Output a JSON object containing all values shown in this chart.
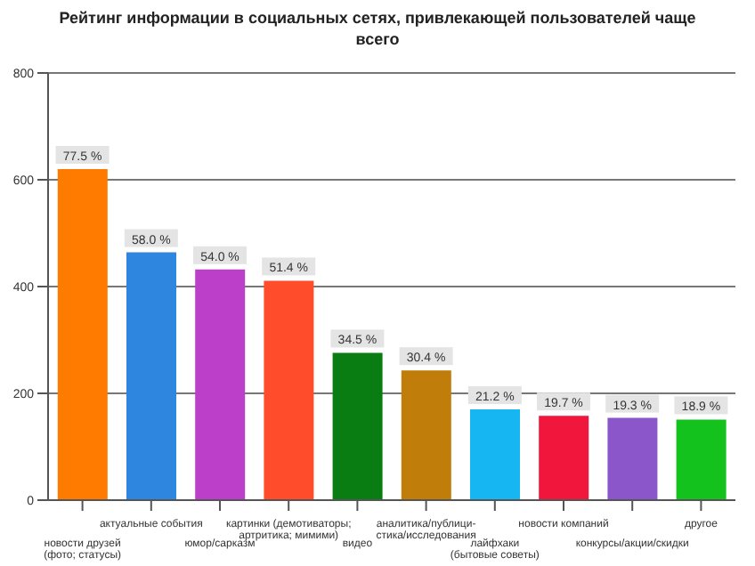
{
  "chart_data": {
    "type": "bar",
    "title": "Рейтинг информации в социальных сетях, привлекающей пользователей чаще всего",
    "categories": [
      "новости друзей\n(фото; статусы)",
      "актуальные события",
      "юмор/сарказм",
      "картинки (демотиваторы;\nартритика; мимими)",
      "видео",
      "аналитика/публици-\nстика/исследования",
      "лайфхаки\n(бытовые советы)",
      "новости компаний",
      "конкурсы/акции/скидки",
      "другое"
    ],
    "values": [
      620,
      464,
      432,
      411,
      276,
      243,
      170,
      158,
      154,
      151
    ],
    "annotations": [
      {
        "text": "77.5 %",
        "x": "новости друзей\n(фото; статусы)",
        "y": 620
      },
      {
        "text": "58.0 %",
        "x": "актуальные события",
        "y": 464
      },
      {
        "text": "54.0 %",
        "x": "юмор/сарказм",
        "y": 432
      },
      {
        "text": "51.4 %",
        "x": "картинки (демотиваторы;\nартритика; мимими)",
        "y": 411
      },
      {
        "text": "34.5 %",
        "x": "видео",
        "y": 276
      },
      {
        "text": "30.4 %",
        "x": "аналитика/публици-\nстика/исследования",
        "y": 243
      },
      {
        "text": "21.2 %",
        "x": "лайфхаки\n(бытовые советы)",
        "y": 170
      },
      {
        "text": "19.7 %",
        "x": "новости компаний",
        "y": 158
      },
      {
        "text": "19.3 %",
        "x": "конкурсы/акции/скидки",
        "y": 154
      },
      {
        "text": "18.9 %",
        "x": "другое",
        "y": 151
      }
    ],
    "colors": [
      "#ff7b00",
      "#2f86de",
      "#bb3fc9",
      "#ff4d2b",
      "#0a7d12",
      "#c07d0a",
      "#15b6f2",
      "#f0163c",
      "#8b56c9",
      "#14c21e"
    ],
    "ylim": [
      0,
      800
    ],
    "yticks": [
      0,
      200,
      400,
      600,
      800
    ],
    "grid": "y"
  }
}
